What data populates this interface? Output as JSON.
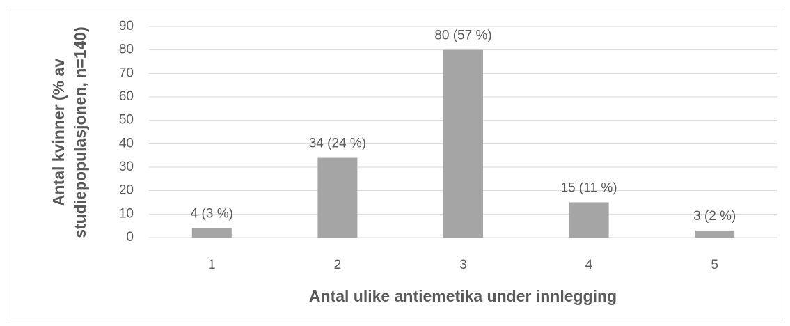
{
  "chart_data": {
    "type": "bar",
    "xlabel": "Antal ulike antiemetika under innlegging",
    "ylabel": "Antal kvinner (% av studiepopulasjonen, n=140)",
    "categories": [
      "1",
      "2",
      "3",
      "4",
      "5"
    ],
    "values": [
      4,
      34,
      80,
      15,
      3
    ],
    "value_labels": [
      "4 (3 %)",
      "34 (24 %)",
      "80 (57 %)",
      "15 (11 %)",
      "3 (2 %)"
    ],
    "color": "#a5a5a5",
    "ylim": [
      0,
      90
    ],
    "yticks": [
      0,
      10,
      20,
      30,
      40,
      50,
      60,
      70,
      80,
      90
    ],
    "grid": true
  }
}
